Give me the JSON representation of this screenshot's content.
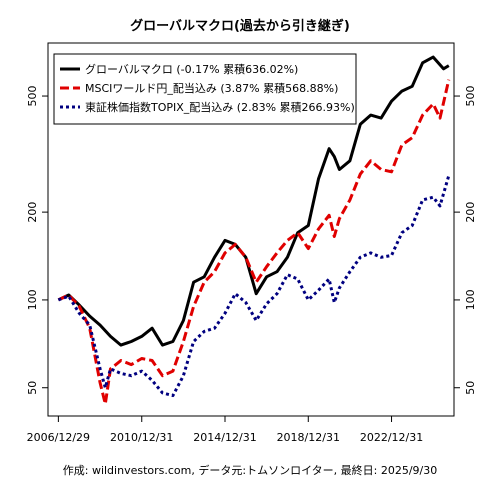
{
  "chart_data": {
    "type": "line",
    "title": "グローバルマクロ(過去から引き継ぎ)",
    "caption": "作成: wildinvestors.com, データ元:トムソンロイター, 最終日: 2025/9/30",
    "y_scale": "log",
    "ylim": [
      40,
      760
    ],
    "xlim": [
      "2006/06/30",
      "2025/12/31"
    ],
    "y_ticks": [
      50,
      100,
      200,
      500
    ],
    "x_ticks": [
      "2006/12/29",
      "2010/12/31",
      "2014/12/31",
      "2018/12/31",
      "2022/12/31"
    ],
    "legend_position": "top-left",
    "grid": false,
    "series": [
      {
        "name": "グローバルマクロ (-0.17% 累積636.02%)",
        "color": "#000000",
        "style": "solid",
        "points": [
          [
            "2006/12/29",
            100
          ],
          [
            "2007/06/29",
            104
          ],
          [
            "2007/12/31",
            96
          ],
          [
            "2008/06/30",
            88
          ],
          [
            "2008/12/31",
            82
          ],
          [
            "2009/06/30",
            75
          ],
          [
            "2009/12/31",
            70
          ],
          [
            "2010/06/30",
            72
          ],
          [
            "2010/12/31",
            75
          ],
          [
            "2011/06/30",
            80
          ],
          [
            "2011/12/30",
            70
          ],
          [
            "2012/06/29",
            72
          ],
          [
            "2012/12/31",
            85
          ],
          [
            "2013/06/28",
            115
          ],
          [
            "2013/12/31",
            120
          ],
          [
            "2014/06/30",
            140
          ],
          [
            "2014/12/31",
            160
          ],
          [
            "2015/06/30",
            155
          ],
          [
            "2015/12/31",
            140
          ],
          [
            "2016/06/30",
            105
          ],
          [
            "2016/12/30",
            120
          ],
          [
            "2017/06/30",
            125
          ],
          [
            "2017/12/29",
            140
          ],
          [
            "2018/06/29",
            170
          ],
          [
            "2018/12/31",
            180
          ],
          [
            "2019/06/28",
            260
          ],
          [
            "2019/12/31",
            330
          ],
          [
            "2020/03/31",
            310
          ],
          [
            "2020/06/30",
            280
          ],
          [
            "2020/12/31",
            300
          ],
          [
            "2021/06/30",
            400
          ],
          [
            "2021/12/31",
            430
          ],
          [
            "2022/06/30",
            420
          ],
          [
            "2022/12/30",
            480
          ],
          [
            "2023/06/30",
            520
          ],
          [
            "2023/12/29",
            540
          ],
          [
            "2024/06/28",
            650
          ],
          [
            "2024/12/31",
            680
          ],
          [
            "2025/06/30",
            620
          ],
          [
            "2025/09/30",
            636
          ]
        ]
      },
      {
        "name": "MSCIワールド円_配当込み (3.87% 累積568.88%)",
        "color": "#e00000",
        "style": "dashed",
        "points": [
          [
            "2006/12/29",
            100
          ],
          [
            "2007/06/29",
            104
          ],
          [
            "2007/12/31",
            95
          ],
          [
            "2008/06/30",
            80
          ],
          [
            "2008/12/31",
            52
          ],
          [
            "2009/03/31",
            44
          ],
          [
            "2009/06/30",
            58
          ],
          [
            "2009/12/31",
            62
          ],
          [
            "2010/06/30",
            60
          ],
          [
            "2010/12/31",
            63
          ],
          [
            "2011/06/30",
            62
          ],
          [
            "2011/12/30",
            55
          ],
          [
            "2012/06/29",
            57
          ],
          [
            "2012/12/31",
            72
          ],
          [
            "2013/06/28",
            95
          ],
          [
            "2013/12/31",
            115
          ],
          [
            "2014/06/30",
            125
          ],
          [
            "2014/12/31",
            145
          ],
          [
            "2015/06/30",
            155
          ],
          [
            "2015/12/31",
            140
          ],
          [
            "2016/06/30",
            115
          ],
          [
            "2016/12/30",
            130
          ],
          [
            "2017/06/30",
            145
          ],
          [
            "2017/12/29",
            160
          ],
          [
            "2018/06/29",
            170
          ],
          [
            "2018/12/31",
            150
          ],
          [
            "2019/06/28",
            175
          ],
          [
            "2019/12/31",
            195
          ],
          [
            "2020/03/31",
            165
          ],
          [
            "2020/06/30",
            190
          ],
          [
            "2020/12/31",
            220
          ],
          [
            "2021/06/30",
            270
          ],
          [
            "2021/12/31",
            300
          ],
          [
            "2022/06/30",
            280
          ],
          [
            "2022/12/30",
            275
          ],
          [
            "2023/06/30",
            340
          ],
          [
            "2023/12/29",
            360
          ],
          [
            "2024/06/28",
            430
          ],
          [
            "2024/12/31",
            470
          ],
          [
            "2025/04/30",
            420
          ],
          [
            "2025/09/30",
            569
          ]
        ]
      },
      {
        "name": "東証株価指数TOPIX_配当込み (2.83% 累積266.93%)",
        "color": "#000080",
        "style": "dotted",
        "points": [
          [
            "2006/12/29",
            100
          ],
          [
            "2007/06/29",
            103
          ],
          [
            "2007/12/31",
            90
          ],
          [
            "2008/06/30",
            82
          ],
          [
            "2008/12/31",
            58
          ],
          [
            "2009/03/31",
            50
          ],
          [
            "2009/06/30",
            58
          ],
          [
            "2009/12/31",
            56
          ],
          [
            "2010/06/30",
            55
          ],
          [
            "2010/12/31",
            57
          ],
          [
            "2011/06/30",
            53
          ],
          [
            "2011/12/30",
            48
          ],
          [
            "2012/06/29",
            47
          ],
          [
            "2012/12/31",
            55
          ],
          [
            "2013/06/28",
            72
          ],
          [
            "2013/12/31",
            78
          ],
          [
            "2014/06/30",
            80
          ],
          [
            "2014/12/31",
            90
          ],
          [
            "2015/06/30",
            105
          ],
          [
            "2015/12/31",
            98
          ],
          [
            "2016/06/30",
            85
          ],
          [
            "2016/12/30",
            97
          ],
          [
            "2017/06/30",
            105
          ],
          [
            "2017/12/29",
            122
          ],
          [
            "2018/06/29",
            118
          ],
          [
            "2018/12/31",
            100
          ],
          [
            "2019/06/28",
            108
          ],
          [
            "2019/12/31",
            118
          ],
          [
            "2020/03/31",
            98
          ],
          [
            "2020/06/30",
            110
          ],
          [
            "2020/12/31",
            125
          ],
          [
            "2021/06/30",
            140
          ],
          [
            "2021/12/31",
            145
          ],
          [
            "2022/06/30",
            140
          ],
          [
            "2022/12/30",
            142
          ],
          [
            "2023/06/30",
            170
          ],
          [
            "2023/12/29",
            180
          ],
          [
            "2024/06/28",
            220
          ],
          [
            "2024/12/31",
            225
          ],
          [
            "2025/04/30",
            210
          ],
          [
            "2025/09/30",
            267
          ]
        ]
      }
    ]
  }
}
